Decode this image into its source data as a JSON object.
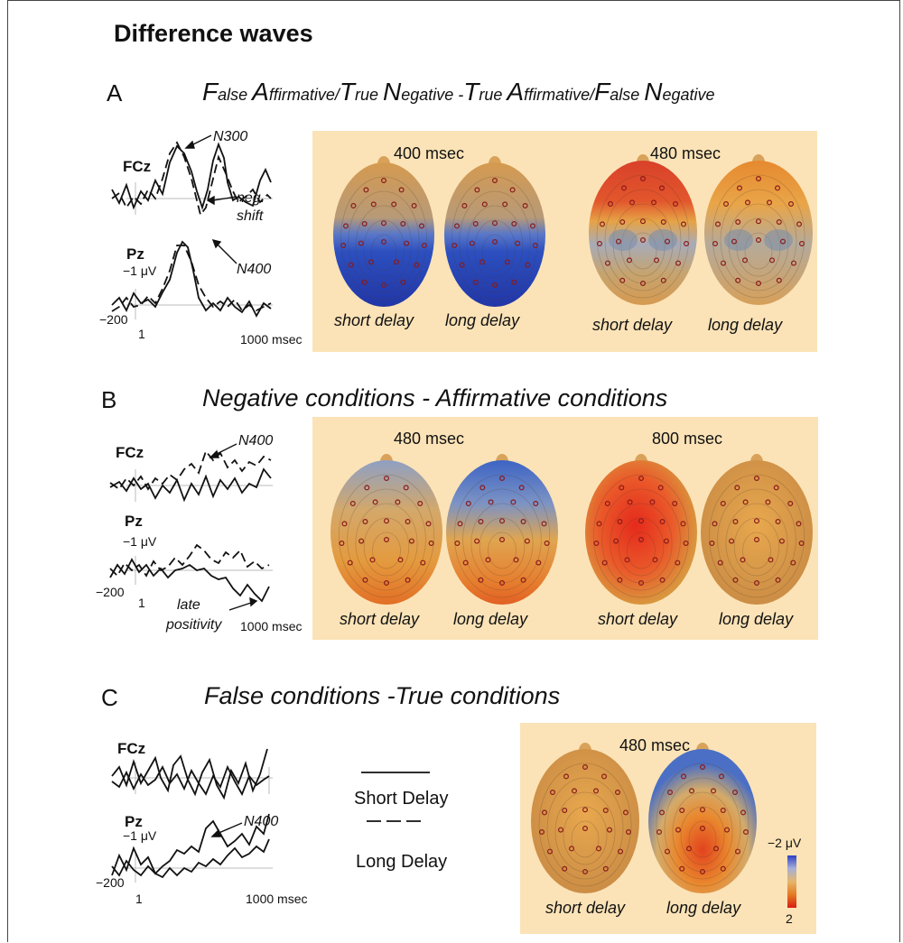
{
  "figure_title": "Difference waves",
  "panels": [
    {
      "letter": "A",
      "title_parts": [
        {
          "big": "F",
          "small": "alse "
        },
        {
          "big": "A",
          "small": "ffirmative/"
        },
        {
          "big": "T",
          "small": "rue "
        },
        {
          "big": "N",
          "small": "egative -"
        },
        {
          "big": "T",
          "small": "rue "
        },
        {
          "big": "A",
          "small": "ffirmative/"
        },
        {
          "big": "F",
          "small": "alse "
        },
        {
          "big": "N",
          "small": "egative"
        }
      ],
      "channels": [
        "FCz",
        "Pz"
      ],
      "amp_label": "−1 μV",
      "x_start": "−200",
      "x_one": "1",
      "x_end": "1000 msec",
      "annotations": [
        "N300",
        "neg.\nshift",
        "N400"
      ],
      "maps": [
        {
          "time": "400 msec",
          "heads": [
            "short delay",
            "long delay"
          ]
        },
        {
          "time": "480 msec",
          "heads": [
            "short delay",
            "long delay"
          ]
        }
      ]
    },
    {
      "letter": "B",
      "title": "Negative conditions - Affirmative conditions",
      "channels": [
        "FCz",
        "Pz"
      ],
      "amp_label": "−1 μV",
      "x_start": "−200",
      "x_one": "1",
      "x_end": "1000 msec",
      "annotations": [
        "N400",
        "late",
        "positivity"
      ],
      "maps": [
        {
          "time": "480 msec",
          "heads": [
            "short delay",
            "long delay"
          ]
        },
        {
          "time": "800 msec",
          "heads": [
            "short delay",
            "long delay"
          ]
        }
      ]
    },
    {
      "letter": "C",
      "title": "False conditions -True conditions",
      "channels": [
        "FCz",
        "Pz"
      ],
      "amp_label": "−1 μV",
      "x_start": "−200",
      "x_one": "1",
      "x_end": "1000 msec",
      "annotations": [
        "N400"
      ],
      "maps": [
        {
          "time": "480 msec",
          "heads": [
            "short delay",
            "long delay"
          ]
        }
      ]
    }
  ],
  "legend": {
    "short": "Short Delay",
    "long": "Long Delay"
  },
  "colorbar": {
    "top": "−2 μV",
    "bottom": "2"
  },
  "colors": {
    "panel_bg": "#fbe3b7",
    "negative": "#2646b8",
    "positive": "#e8281c",
    "neutral": "#d9a25a"
  }
}
